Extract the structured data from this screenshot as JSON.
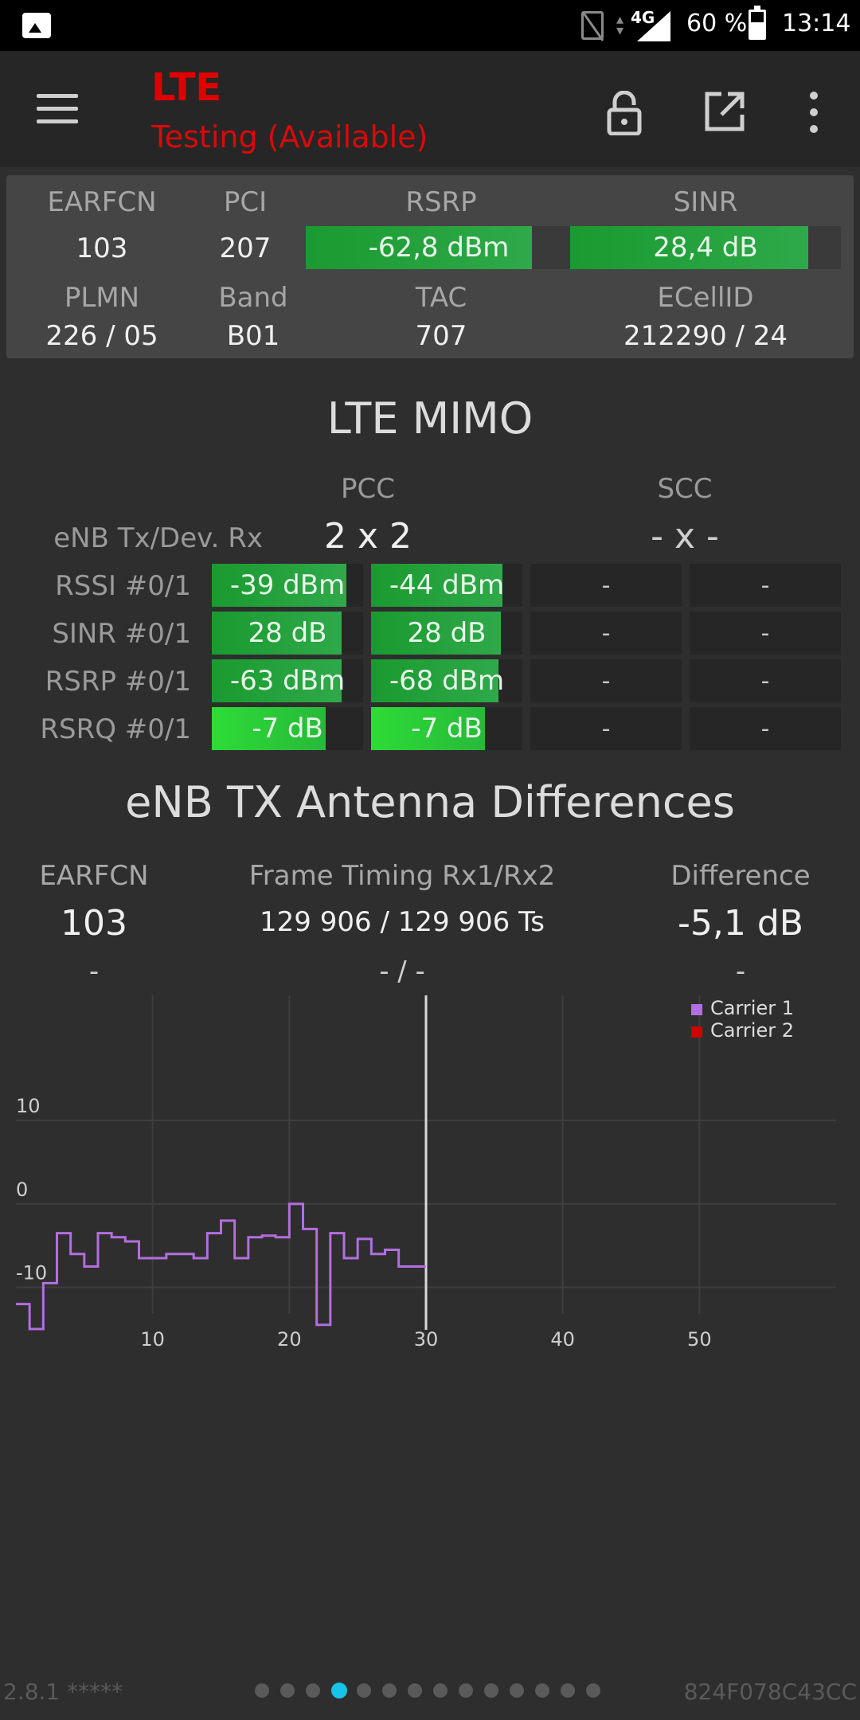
{
  "status_bar": {
    "network": "4G",
    "battery_percent": "60 %",
    "battery_level": 0.6,
    "time": "13:14"
  },
  "toolbar": {
    "title": "LTE",
    "subtitle": "Testing (Available)",
    "title_color": "#e00000"
  },
  "cell_info": {
    "labels": {
      "earfcn": "EARFCN",
      "pci": "PCI",
      "rsrp": "RSRP",
      "sinr": "SINR",
      "plmn": "PLMN",
      "band": "Band",
      "tac": "TAC",
      "ecellid": "ECellID"
    },
    "earfcn": "103",
    "pci": "207",
    "rsrp": "-62,8 dBm",
    "rsrp_level": 0.85,
    "sinr": "28,4 dB",
    "sinr_level": 0.88,
    "plmn": "226 / 05",
    "band": "B01",
    "tac": "707",
    "ecellid": "212290 / 24"
  },
  "mimo": {
    "title": "LTE MIMO",
    "pcc_label": "PCC",
    "scc_label": "SCC",
    "row_label": "eNB Tx/Dev. Rx",
    "pcc_value": "2 x 2",
    "scc_value": "- x -",
    "rows": [
      {
        "label": "RSSI #0/1",
        "pcc0": "-39 dBm",
        "pcc0_level": 0.89,
        "pcc1": "-44 dBm",
        "pcc1_level": 0.87,
        "scc0": "-",
        "scc1": "-",
        "bright": false
      },
      {
        "label": "SINR #0/1",
        "pcc0": "28 dB",
        "pcc0_level": 0.86,
        "pcc1": "28 dB",
        "pcc1_level": 0.86,
        "scc0": "-",
        "scc1": "-",
        "bright": false
      },
      {
        "label": "RSRP #0/1",
        "pcc0": "-63 dBm",
        "pcc0_level": 0.86,
        "pcc1": "-68 dBm",
        "pcc1_level": 0.84,
        "scc0": "-",
        "scc1": "-",
        "bright": false
      },
      {
        "label": "RSRQ #0/1",
        "pcc0": "-7 dB",
        "pcc0_level": 0.75,
        "pcc1": "-7 dB",
        "pcc1_level": 0.75,
        "scc0": "-",
        "scc1": "-",
        "bright": true
      }
    ]
  },
  "antenna_diff": {
    "title": "eNB TX Antenna Differences",
    "earfcn_label": "EARFCN",
    "timing_label": "Frame Timing Rx1/Rx2",
    "difference_label": "Difference",
    "earfcn_value": "103",
    "timing_value": "129 906 / 129 906 Ts",
    "difference_value": "-5,1 dB",
    "earfcn_value2": "-",
    "timing_value2": "- / -",
    "difference_value2": "-"
  },
  "chart_data": {
    "type": "line",
    "xlim": [
      0,
      60
    ],
    "ylim": [
      -17,
      25
    ],
    "x_ticks": [
      "10",
      "20",
      "30",
      "40",
      "50"
    ],
    "y_ticks": [
      "10",
      "0",
      "-10"
    ],
    "cursor_x": 30,
    "legend_position": "top-right",
    "series": [
      {
        "name": "Carrier 1",
        "color": "#b36ee0",
        "step_x": [
          0,
          1,
          2,
          3,
          4,
          5,
          6,
          7,
          8,
          9,
          10,
          11,
          12,
          13,
          14,
          15,
          16,
          17,
          18,
          19,
          20,
          21,
          22,
          23,
          24,
          25,
          26,
          27,
          28,
          29
        ],
        "values": [
          -12,
          -15,
          -9.5,
          -3.5,
          -6,
          -7.5,
          -3.5,
          -4,
          -4.5,
          -6.5,
          -6.5,
          -6,
          -6,
          -6.5,
          -3.5,
          -2,
          -6.5,
          -4,
          -3.8,
          -4,
          0,
          -3,
          -14.5,
          -3.5,
          -6.5,
          -4.2,
          -6,
          -5.5,
          -7.5,
          -7.5
        ]
      },
      {
        "name": "Carrier 2",
        "color": "#d10000",
        "step_x": [],
        "values": []
      }
    ]
  },
  "footer": {
    "version": "2.8.1 *****",
    "device_id": "824F078C43CC",
    "page_count": 14,
    "active_page": 3
  }
}
